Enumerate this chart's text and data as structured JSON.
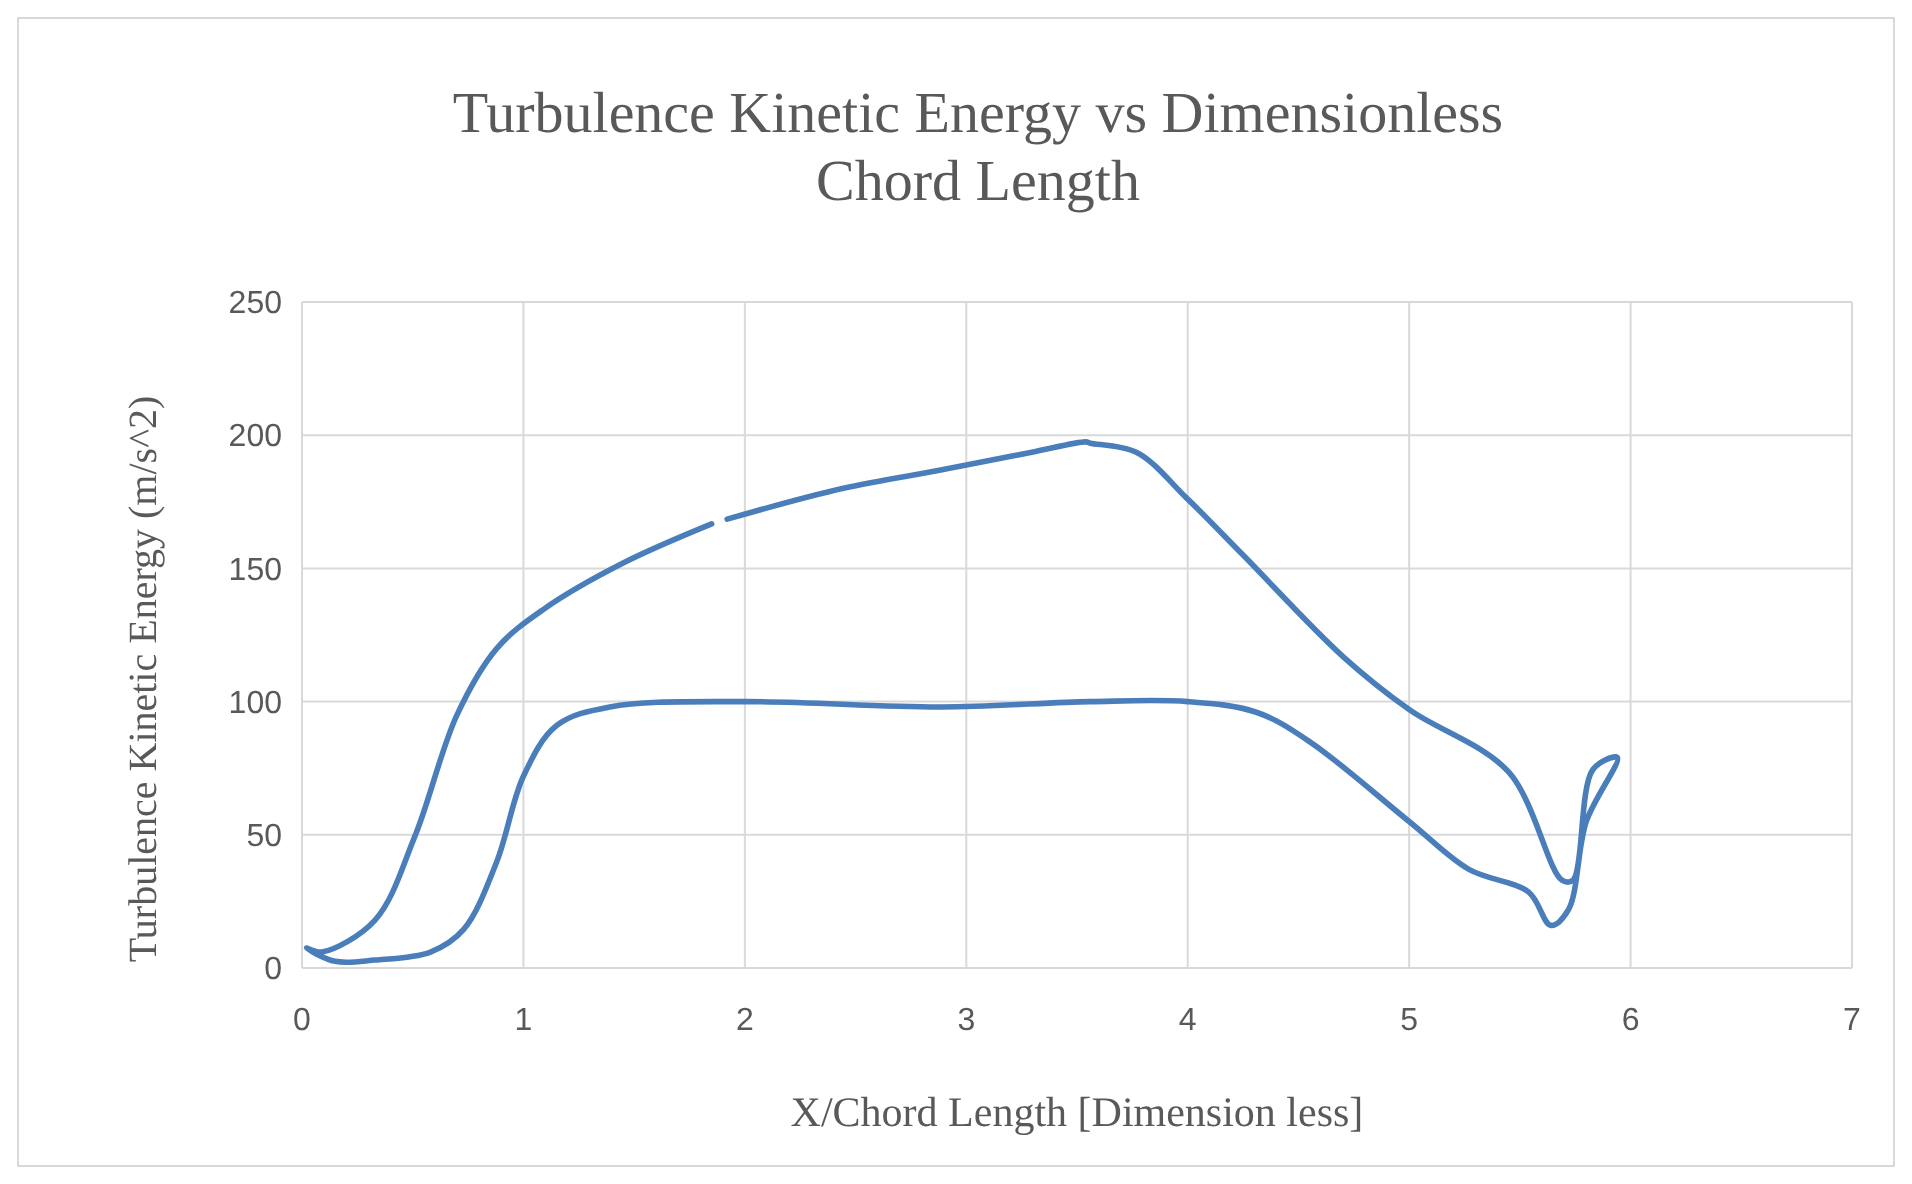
{
  "chart_data": {
    "type": "line",
    "title": "Turbulence Kinetic Energy vs Dimensionless Chord Length",
    "xlabel": "X/Chord Length [Dimension less]",
    "ylabel": "Turbulence Kinetic Energy (m/s^2)",
    "xlim": [
      0,
      7
    ],
    "xticks": [
      0,
      1,
      2,
      3,
      4,
      5,
      6,
      7
    ],
    "ylim": [
      0,
      250
    ],
    "yticks": [
      0,
      50,
      100,
      150,
      200,
      250
    ],
    "grid": true,
    "line_style": "solid",
    "series": [
      {
        "color": "#4a7ebb",
        "x": [
          1.92,
          2.44,
          2.89,
          3.29,
          3.54,
          3.56,
          3.77,
          4.0,
          4.25,
          4.7,
          5.0,
          5.45,
          5.69,
          5.74,
          5.83,
          5.94,
          5.8,
          5.72,
          5.64,
          5.54,
          5.27,
          5.0,
          4.55,
          4.31,
          4.0,
          3.56,
          2.89,
          1.99,
          1.39,
          1.15,
          1.0,
          0.88,
          0.73,
          0.58,
          0.33,
          0.15,
          0.02,
          0.09,
          0.33,
          0.51,
          0.7,
          0.88,
          1.09,
          1.45,
          1.85
        ],
        "values": [
          168.5,
          180,
          187,
          193.5,
          197.5,
          197,
          193.5,
          176,
          155,
          117,
          97,
          73.5,
          33,
          33,
          74.5,
          79,
          55,
          22,
          16,
          28.5,
          37,
          55,
          85,
          96,
          100,
          100,
          98,
          100,
          98,
          91,
          72,
          40,
          14.5,
          6,
          3,
          2.5,
          7.5,
          6,
          18,
          49.5,
          95,
          120,
          134.6,
          152,
          166.7
        ]
      }
    ]
  }
}
